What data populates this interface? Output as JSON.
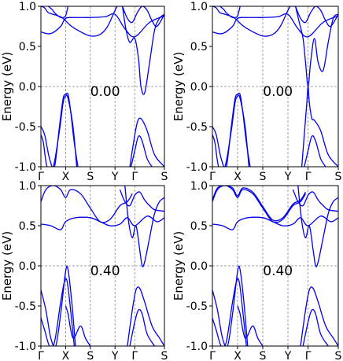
{
  "chart_data": [
    {
      "type": "line",
      "annotation": "0.00",
      "ylabel": "Energy (eV)",
      "ylim": [
        -1.0,
        1.0
      ],
      "yticks": [
        "1.0",
        "0.5",
        "0.0",
        "-0.5",
        "-1.0"
      ],
      "ytick_values": [
        1.0,
        0.5,
        0.0,
        -0.5,
        -1.0
      ],
      "xticks": [
        "Γ",
        "X",
        "S",
        "Y",
        "Γ",
        "S"
      ],
      "xtick_positions": [
        0,
        1,
        2,
        3,
        3.8,
        5
      ],
      "xlim": [
        0,
        5
      ],
      "fermi_level": 0.0,
      "line_color": "#0000ee",
      "series": [
        {
          "x": [
            0,
            0.4,
            0.8,
            1.0,
            1.4,
            2.0,
            2.6,
            3.0,
            3.4,
            3.8,
            4.4,
            5.0
          ],
          "values": [
            0.68,
            0.66,
            0.75,
            0.85,
            0.86,
            0.86,
            0.87,
            0.9,
            0.72,
            0.62,
            0.8,
            0.88
          ]
        },
        {
          "x": [
            0,
            0.15,
            0.3,
            0.5,
            0.7,
            0.85,
            1.0,
            1.2,
            1.5,
            2.0,
            2.4,
            2.7,
            3.0,
            3.1,
            3.2,
            3.3
          ],
          "values": [
            1.0,
            0.98,
            0.92,
            0.9,
            0.88,
            0.86,
            0.82,
            0.76,
            0.7,
            0.63,
            0.65,
            0.75,
            0.95,
            1.0,
            1.0,
            1.0
          ]
        },
        {
          "x": [
            0.3,
            0.45,
            0.55,
            0.7,
            0.8,
            0.9,
            1.0,
            1.1
          ],
          "values": [
            1.0,
            0.96,
            0.92,
            0.88,
            0.86,
            0.86,
            0.88,
            1.0
          ]
        },
        {
          "x": [
            3.3,
            3.45,
            3.6,
            3.8,
            3.95,
            4.05,
            4.2,
            4.4,
            4.6,
            4.8,
            5.0
          ],
          "values": [
            1.0,
            0.7,
            0.55,
            0.6,
            0.35,
            0.0,
            -0.08,
            0.3,
            0.7,
            0.85,
            0.9
          ]
        },
        {
          "x": [
            3.3,
            3.5,
            3.7,
            3.9,
            4.1,
            4.3,
            4.5,
            4.7,
            5.0
          ],
          "values": [
            1.0,
            0.85,
            0.8,
            0.92,
            1.0,
            0.95,
            0.82,
            0.75,
            0.9
          ]
        },
        {
          "x": [
            0.0,
            0.15,
            0.35,
            0.55,
            0.75,
            0.9,
            1.0,
            1.1,
            1.2,
            1.35,
            1.5
          ],
          "values": [
            -0.5,
            -0.6,
            -0.9,
            -1.0,
            -0.5,
            -0.15,
            -0.1,
            -0.1,
            -0.3,
            -0.7,
            -1.0
          ]
        },
        {
          "x": [
            0.0,
            0.1,
            0.25,
            0.5,
            0.75,
            0.9,
            1.0,
            1.1,
            1.3,
            1.45
          ],
          "values": [
            -0.6,
            -0.7,
            -1.0,
            -1.0,
            -0.55,
            -0.2,
            -0.12,
            -0.15,
            -0.5,
            -1.0
          ]
        },
        {
          "x": [
            3.6,
            3.75,
            3.9,
            4.05,
            4.3,
            4.6,
            5.0
          ],
          "values": [
            -1.0,
            -0.7,
            -0.45,
            -0.4,
            -0.55,
            -0.85,
            -1.0
          ]
        },
        {
          "x": [
            3.65,
            3.8,
            3.95,
            4.1,
            4.3,
            4.5
          ],
          "values": [
            -1.0,
            -0.8,
            -0.62,
            -0.68,
            -0.9,
            -1.0
          ]
        }
      ]
    },
    {
      "type": "line",
      "annotation": "0.00",
      "ylabel": "Energy (eV)",
      "ylim": [
        -1.0,
        1.0
      ],
      "yticks": [
        "1.0",
        "0.5",
        "0.0",
        "-0.5",
        "-1.0"
      ],
      "ytick_values": [
        1.0,
        0.5,
        0.0,
        -0.5,
        -1.0
      ],
      "xticks": [
        "Γ",
        "X",
        "S",
        "Y",
        "Γ",
        "S"
      ],
      "xtick_positions": [
        0,
        1,
        2,
        3,
        3.8,
        5
      ],
      "xlim": [
        0,
        5
      ],
      "fermi_level": 0.0,
      "line_color": "#0000ee",
      "series": [
        {
          "x": [
            0,
            0.4,
            0.8,
            1.0,
            1.4,
            2.0,
            2.6,
            3.0,
            3.4,
            3.8,
            4.4,
            5.0
          ],
          "values": [
            0.68,
            0.66,
            0.75,
            0.85,
            0.86,
            0.86,
            0.87,
            0.9,
            0.72,
            0.62,
            0.8,
            0.88
          ]
        },
        {
          "x": [
            0,
            0.15,
            0.3,
            0.5,
            0.7,
            0.85,
            1.0,
            1.2,
            1.5,
            2.0,
            2.4,
            2.7,
            3.0,
            3.1,
            3.2,
            3.3
          ],
          "values": [
            1.0,
            0.98,
            0.92,
            0.9,
            0.88,
            0.86,
            0.82,
            0.76,
            0.7,
            0.63,
            0.65,
            0.75,
            0.95,
            1.0,
            1.0,
            1.0
          ]
        },
        {
          "x": [
            0.3,
            0.45,
            0.55,
            0.7,
            0.8,
            0.9,
            1.0,
            1.1
          ],
          "values": [
            1.0,
            0.96,
            0.92,
            0.88,
            0.86,
            0.86,
            0.88,
            1.0
          ]
        },
        {
          "x": [
            3.3,
            3.45,
            3.6,
            3.7,
            3.8,
            3.9,
            4.05,
            4.2,
            4.4,
            4.6,
            4.8,
            5.0
          ],
          "values": [
            1.0,
            0.8,
            0.6,
            0.3,
            0.0,
            0.3,
            0.6,
            0.3,
            0.2,
            0.55,
            0.85,
            0.9
          ]
        },
        {
          "x": [
            3.3,
            3.5,
            3.7,
            3.9,
            4.1,
            4.3,
            4.5,
            4.7,
            5.0
          ],
          "values": [
            1.0,
            0.85,
            0.8,
            0.92,
            1.0,
            0.95,
            0.82,
            0.75,
            0.9
          ]
        },
        {
          "x": [
            0.0,
            0.15,
            0.35,
            0.55,
            0.75,
            0.9,
            1.0,
            1.1,
            1.2,
            1.35,
            1.5
          ],
          "values": [
            -0.5,
            -0.6,
            -0.9,
            -1.0,
            -0.5,
            -0.15,
            -0.1,
            -0.1,
            -0.3,
            -0.7,
            -1.0
          ]
        },
        {
          "x": [
            0.0,
            0.1,
            0.25,
            0.5,
            0.75,
            0.9,
            1.0,
            1.1,
            1.3,
            1.45
          ],
          "values": [
            -0.6,
            -0.7,
            -1.0,
            -1.0,
            -0.55,
            -0.2,
            -0.12,
            -0.15,
            -0.5,
            -1.0
          ]
        },
        {
          "x": [
            3.55,
            3.65,
            3.75,
            3.8,
            3.85,
            3.95,
            4.05,
            4.3,
            4.6,
            5.0
          ],
          "values": [
            -1.0,
            -0.6,
            -0.2,
            0.0,
            -0.2,
            -0.4,
            -0.42,
            -0.55,
            -0.85,
            -1.0
          ]
        },
        {
          "x": [
            3.65,
            3.8,
            3.95,
            4.1,
            4.3,
            4.5
          ],
          "values": [
            -1.0,
            -0.8,
            -0.62,
            -0.68,
            -0.9,
            -1.0
          ]
        }
      ]
    },
    {
      "type": "line",
      "annotation": "0.40",
      "ylabel": "Energy (eV)",
      "ylim": [
        -1.0,
        1.0
      ],
      "yticks": [
        "1.0",
        "0.5",
        "0.0",
        "-0.5",
        "-1.0"
      ],
      "ytick_values": [
        1.0,
        0.5,
        0.0,
        -0.5,
        -1.0
      ],
      "xticks": [
        "Γ",
        "X",
        "S",
        "Y",
        "Γ",
        "S"
      ],
      "xtick_positions": [
        0,
        1,
        2,
        3,
        3.8,
        5
      ],
      "xlim": [
        0,
        5
      ],
      "fermi_level": 0.0,
      "line_color": "#0000ee",
      "series": [
        {
          "x": [
            0,
            0.4,
            0.8,
            1.0,
            1.4,
            2.0,
            2.4,
            2.8,
            3.2,
            3.5,
            3.8,
            4.3,
            4.7,
            5.0
          ],
          "values": [
            0.52,
            0.5,
            0.45,
            0.55,
            0.6,
            0.6,
            0.55,
            0.5,
            0.52,
            0.6,
            0.5,
            0.62,
            0.55,
            0.6
          ]
        },
        {
          "x": [
            0,
            0.2,
            0.5,
            0.8,
            1.0,
            1.2,
            1.6,
            2.0,
            2.4,
            2.8,
            3.2,
            3.5,
            3.7
          ],
          "values": [
            0.8,
            0.95,
            1.0,
            0.95,
            0.85,
            0.95,
            0.9,
            0.72,
            0.55,
            0.58,
            0.75,
            0.8,
            0.9
          ]
        },
        {
          "x": [
            3.2,
            3.4,
            3.6,
            3.8,
            4.0,
            4.2,
            4.4,
            4.6,
            5.0
          ],
          "values": [
            0.95,
            0.8,
            0.75,
            0.88,
            0.92,
            0.82,
            0.75,
            0.7,
            0.68
          ]
        },
        {
          "x": [
            3.4,
            3.55,
            3.7,
            3.85,
            4.0,
            4.1,
            4.2,
            4.4,
            4.6,
            4.8,
            5.0
          ],
          "values": [
            1.0,
            0.55,
            0.35,
            0.5,
            0.2,
            0.0,
            0.05,
            0.35,
            0.65,
            0.8,
            0.85
          ]
        },
        {
          "x": [
            0.0,
            0.2,
            0.4,
            0.6,
            0.8,
            1.0,
            1.1,
            1.25,
            1.4
          ],
          "values": [
            -0.3,
            -0.55,
            -0.9,
            -1.0,
            -0.6,
            -0.07,
            -0.05,
            -0.45,
            -1.0
          ]
        },
        {
          "x": [
            0.0,
            0.15,
            0.35,
            0.55,
            0.8,
            0.95,
            1.05,
            1.15,
            1.35
          ],
          "values": [
            -0.65,
            -0.8,
            -1.0,
            -0.95,
            -0.45,
            -0.2,
            -0.18,
            -0.4,
            -1.0
          ]
        },
        {
          "x": [
            1.0,
            1.1,
            1.3,
            1.6,
            1.8,
            2.0
          ],
          "values": [
            -0.5,
            -0.6,
            -0.9,
            -0.75,
            -0.9,
            -1.0
          ]
        },
        {
          "x": [
            3.5,
            3.7,
            3.85,
            4.0,
            4.2,
            4.5,
            4.8,
            5.0
          ],
          "values": [
            -1.0,
            -0.55,
            -0.3,
            -0.28,
            -0.45,
            -0.75,
            -0.9,
            -1.0
          ]
        },
        {
          "x": [
            3.6,
            3.8,
            3.95,
            4.1,
            4.3,
            4.6
          ],
          "values": [
            -1.0,
            -0.7,
            -0.55,
            -0.6,
            -0.85,
            -1.0
          ]
        }
      ]
    },
    {
      "type": "line",
      "annotation": "0.40",
      "ylabel": "Energy (eV)",
      "ylim": [
        -1.0,
        1.0
      ],
      "yticks": [
        "1.0",
        "0.5",
        "0.0",
        "-0.5",
        "-1.0"
      ],
      "ytick_values": [
        1.0,
        0.5,
        0.0,
        -0.5,
        -1.0
      ],
      "xticks": [
        "Γ",
        "X",
        "S",
        "Y",
        "Γ",
        "S"
      ],
      "xtick_positions": [
        0,
        1,
        2,
        3,
        3.8,
        5
      ],
      "xlim": [
        0,
        5
      ],
      "fermi_level": 0.0,
      "line_color": "#0000ee",
      "series": [
        {
          "x": [
            0,
            0.4,
            0.8,
            1.0,
            1.4,
            2.0,
            2.4,
            2.8,
            3.2,
            3.5,
            3.8,
            4.3,
            4.7,
            5.0
          ],
          "values": [
            0.52,
            0.5,
            0.45,
            0.55,
            0.6,
            0.6,
            0.55,
            0.5,
            0.52,
            0.6,
            0.5,
            0.62,
            0.55,
            0.6
          ]
        },
        {
          "x": [
            0,
            0.2,
            0.5,
            0.8,
            1.0,
            1.2,
            1.6,
            2.0,
            2.4,
            2.8,
            3.2,
            3.5,
            3.7
          ],
          "values": [
            0.8,
            0.95,
            1.0,
            0.95,
            0.85,
            0.95,
            0.9,
            0.72,
            0.55,
            0.58,
            0.75,
            0.8,
            0.9
          ]
        },
        {
          "x": [
            0,
            0.2,
            0.5,
            0.8,
            1.0,
            1.2,
            1.6,
            2.0,
            2.4,
            2.8,
            3.2,
            3.5,
            3.7
          ],
          "values": [
            0.82,
            0.97,
            1.0,
            0.97,
            0.87,
            0.97,
            0.92,
            0.74,
            0.57,
            0.6,
            0.77,
            0.82,
            0.92
          ]
        },
        {
          "x": [
            3.2,
            3.4,
            3.6,
            3.8,
            4.0,
            4.2,
            4.4,
            4.6,
            5.0
          ],
          "values": [
            0.95,
            0.8,
            0.75,
            0.88,
            0.92,
            0.82,
            0.75,
            0.7,
            0.68
          ]
        },
        {
          "x": [
            3.4,
            3.55,
            3.7,
            3.85,
            4.0,
            4.1,
            4.2,
            4.4,
            4.6,
            4.8,
            5.0
          ],
          "values": [
            1.0,
            0.55,
            0.35,
            0.5,
            0.2,
            0.0,
            0.05,
            0.35,
            0.65,
            0.8,
            0.85
          ]
        },
        {
          "x": [
            0.0,
            0.2,
            0.4,
            0.6,
            0.8,
            1.0,
            1.1,
            1.25,
            1.4
          ],
          "values": [
            -0.3,
            -0.55,
            -0.9,
            -1.0,
            -0.6,
            -0.07,
            -0.05,
            -0.45,
            -1.0
          ]
        },
        {
          "x": [
            0.0,
            0.15,
            0.35,
            0.55,
            0.8,
            0.95,
            1.05,
            1.15,
            1.35
          ],
          "values": [
            -0.65,
            -0.8,
            -1.0,
            -0.95,
            -0.45,
            -0.2,
            -0.18,
            -0.4,
            -1.0
          ]
        },
        {
          "x": [
            1.0,
            1.1,
            1.3,
            1.6,
            1.8,
            2.0
          ],
          "values": [
            -0.5,
            -0.6,
            -0.9,
            -0.75,
            -0.9,
            -1.0
          ]
        },
        {
          "x": [
            3.5,
            3.7,
            3.85,
            4.0,
            4.2,
            4.5,
            4.8,
            5.0
          ],
          "values": [
            -1.0,
            -0.55,
            -0.3,
            -0.28,
            -0.45,
            -0.75,
            -0.9,
            -1.0
          ]
        },
        {
          "x": [
            3.6,
            3.8,
            3.95,
            4.1,
            4.3,
            4.6
          ],
          "values": [
            -1.0,
            -0.7,
            -0.55,
            -0.6,
            -0.85,
            -1.0
          ]
        }
      ]
    }
  ]
}
